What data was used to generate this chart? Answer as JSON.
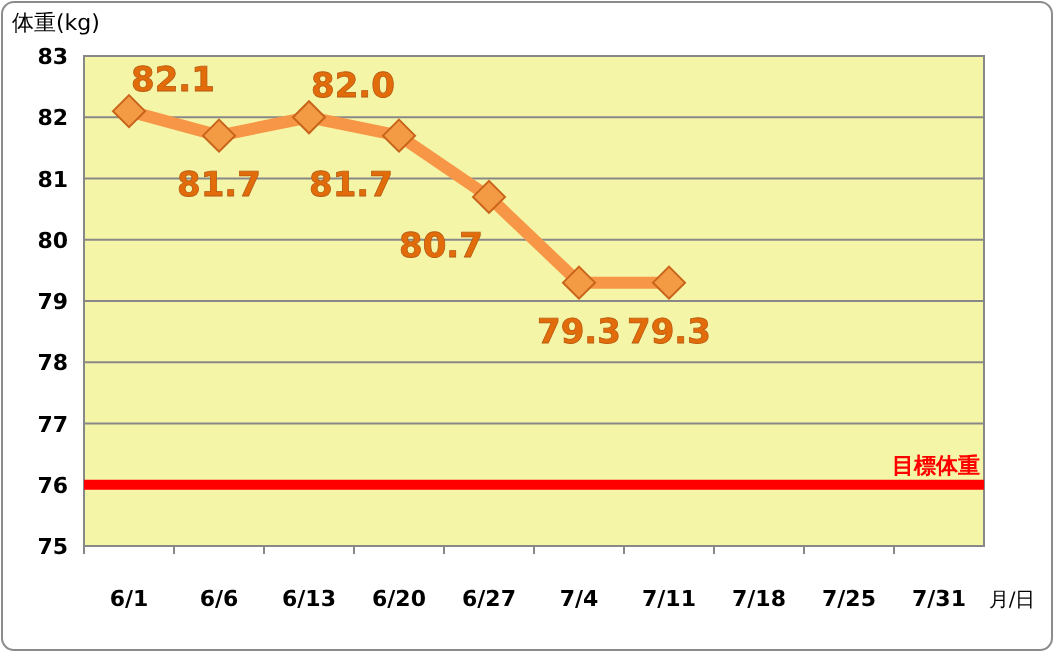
{
  "chart_data": {
    "type": "line",
    "ylabel": "体重(kg)",
    "xlabel": "月/日",
    "categories": [
      "6/1",
      "6/6",
      "6/13",
      "6/20",
      "6/27",
      "7/4",
      "7/11",
      "7/18",
      "7/25",
      "7/31"
    ],
    "series": [
      {
        "color": "#f79646",
        "values": [
          82.1,
          81.7,
          82.0,
          81.7,
          80.7,
          79.3,
          79.3,
          null,
          null,
          null
        ],
        "value_labels": [
          "82.1",
          "81.7",
          "82.0",
          "81.7",
          "80.7",
          "79.3",
          "79.3",
          null,
          null,
          null
        ]
      }
    ],
    "ylim": [
      75,
      83
    ],
    "yticks": [
      75,
      76,
      77,
      78,
      79,
      80,
      81,
      82,
      83
    ],
    "grid": "y",
    "marker": "diamond",
    "line_style": "solid",
    "ref_lines": [
      {
        "axis": "y",
        "value": 76,
        "label": "目標体重",
        "color": "#ff0000"
      }
    ]
  }
}
